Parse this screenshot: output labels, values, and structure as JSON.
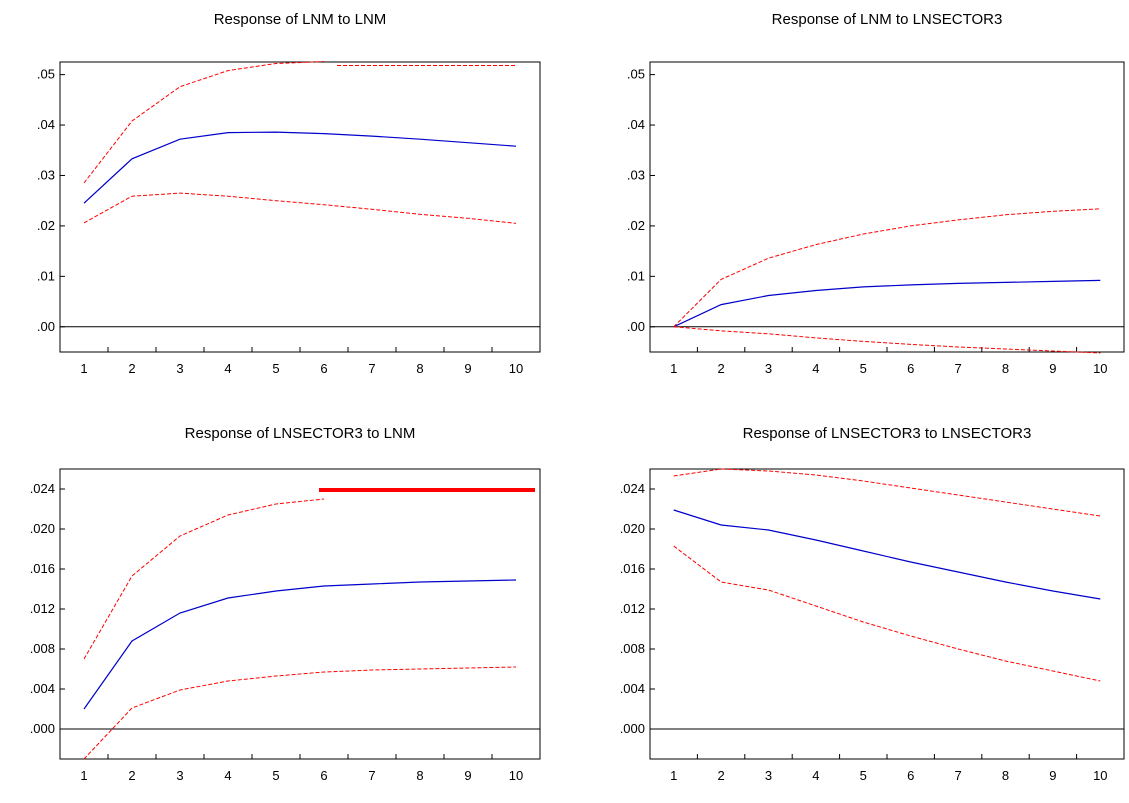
{
  "colors": {
    "response": "#0000cc",
    "bands": "#ff0000",
    "axis": "#000000"
  },
  "chart_data": [
    {
      "type": "line",
      "title": "Response of LNM to LNM",
      "x": [
        1,
        2,
        3,
        4,
        5,
        6,
        7,
        8,
        9,
        10
      ],
      "xticks": [
        "1",
        "2",
        "3",
        "4",
        "5",
        "6",
        "7",
        "8",
        "9",
        "10"
      ],
      "ylim": [
        -0.005,
        0.0525
      ],
      "yticks": [
        0.0,
        0.01,
        0.02,
        0.03,
        0.04,
        0.05
      ],
      "ytick_labels": [
        ".00",
        ".01",
        ".02",
        ".03",
        ".04",
        ".05"
      ],
      "zero_line": true,
      "series": [
        {
          "role": "response",
          "style": "solid",
          "values": [
            0.0245,
            0.0333,
            0.0372,
            0.0385,
            0.0386,
            0.0383,
            0.0378,
            0.0372,
            0.0365,
            0.0358
          ]
        },
        {
          "role": "upper-band",
          "style": "dashed",
          "values": [
            0.0285,
            0.0408,
            0.0476,
            0.0508,
            0.0522,
            0.0526,
            null,
            null,
            null,
            null
          ]
        },
        {
          "role": "upper-band-clipped",
          "style": "dashed",
          "values": [
            null,
            null,
            null,
            null,
            null,
            null,
            0.0518,
            0.0518,
            0.0518,
            0.0518
          ]
        },
        {
          "role": "lower-band",
          "style": "dashed",
          "values": [
            0.0206,
            0.0259,
            0.0265,
            0.0259,
            0.025,
            0.0242,
            0.0233,
            0.0223,
            0.0215,
            0.0205
          ]
        }
      ]
    },
    {
      "type": "line",
      "title": "Response of LNM to LNSECTOR3",
      "x": [
        1,
        2,
        3,
        4,
        5,
        6,
        7,
        8,
        9,
        10
      ],
      "xticks": [
        "1",
        "2",
        "3",
        "4",
        "5",
        "6",
        "7",
        "8",
        "9",
        "10"
      ],
      "ylim": [
        -0.005,
        0.0525
      ],
      "yticks": [
        0.0,
        0.01,
        0.02,
        0.03,
        0.04,
        0.05
      ],
      "ytick_labels": [
        ".00",
        ".01",
        ".02",
        ".03",
        ".04",
        ".05"
      ],
      "zero_line": true,
      "series": [
        {
          "role": "response",
          "style": "solid",
          "values": [
            0.0,
            0.0044,
            0.0062,
            0.0072,
            0.0079,
            0.0083,
            0.0086,
            0.0088,
            0.009,
            0.0092
          ]
        },
        {
          "role": "upper-band",
          "style": "dashed",
          "values": [
            0.0,
            0.0094,
            0.0136,
            0.0163,
            0.0184,
            0.02,
            0.0212,
            0.0222,
            0.0229,
            0.0234
          ]
        },
        {
          "role": "lower-band",
          "style": "dashed",
          "values": [
            0.0,
            -0.0008,
            -0.0014,
            -0.0022,
            -0.0029,
            -0.0035,
            -0.004,
            -0.0044,
            -0.0048,
            -0.0052
          ]
        }
      ]
    },
    {
      "type": "line",
      "title": "Response of LNSECTOR3 to LNM",
      "x": [
        1,
        2,
        3,
        4,
        5,
        6,
        7,
        8,
        9,
        10
      ],
      "xticks": [
        "1",
        "2",
        "3",
        "4",
        "5",
        "6",
        "7",
        "8",
        "9",
        "10"
      ],
      "ylim": [
        -0.003,
        0.026
      ],
      "yticks": [
        0.0,
        0.004,
        0.008,
        0.012,
        0.016,
        0.02,
        0.024
      ],
      "ytick_labels": [
        ".000",
        ".004",
        ".008",
        ".012",
        ".016",
        ".020",
        ".024"
      ],
      "zero_line": true,
      "series": [
        {
          "role": "response",
          "style": "solid",
          "values": [
            0.002,
            0.0088,
            0.0116,
            0.0131,
            0.0138,
            0.0143,
            0.0145,
            0.0147,
            0.0148,
            0.0149
          ]
        },
        {
          "role": "upper-band",
          "style": "dashed",
          "values": [
            0.007,
            0.0153,
            0.0193,
            0.0214,
            0.0225,
            0.023,
            null,
            null,
            null,
            null
          ]
        },
        {
          "role": "upper-band-clipped",
          "style": "thick",
          "values": [
            null,
            null,
            null,
            null,
            null,
            0.0239,
            0.0239,
            0.0239,
            0.0239,
            0.0239
          ]
        },
        {
          "role": "lower-band",
          "style": "dashed",
          "values": [
            -0.003,
            0.0021,
            0.0039,
            0.0048,
            0.0053,
            0.0057,
            0.0059,
            0.006,
            0.0061,
            0.0062
          ]
        }
      ]
    },
    {
      "type": "line",
      "title": "Response of LNSECTOR3 to LNSECTOR3",
      "x": [
        1,
        2,
        3,
        4,
        5,
        6,
        7,
        8,
        9,
        10
      ],
      "xticks": [
        "1",
        "2",
        "3",
        "4",
        "5",
        "6",
        "7",
        "8",
        "9",
        "10"
      ],
      "ylim": [
        -0.003,
        0.026
      ],
      "yticks": [
        0.0,
        0.004,
        0.008,
        0.012,
        0.016,
        0.02,
        0.024
      ],
      "ytick_labels": [
        ".000",
        ".004",
        ".008",
        ".012",
        ".016",
        ".020",
        ".024"
      ],
      "zero_line": true,
      "series": [
        {
          "role": "response",
          "style": "solid",
          "values": [
            0.0219,
            0.0204,
            0.0199,
            0.0189,
            0.0178,
            0.0167,
            0.0157,
            0.0147,
            0.0138,
            0.013
          ]
        },
        {
          "role": "upper-band",
          "style": "dashed",
          "values": [
            0.0253,
            0.026,
            0.0258,
            0.0254,
            0.0248,
            0.0241,
            0.0234,
            0.0227,
            0.022,
            0.0213
          ]
        },
        {
          "role": "lower-band",
          "style": "dashed",
          "values": [
            0.0183,
            0.0147,
            0.0139,
            0.0123,
            0.0107,
            0.0093,
            0.008,
            0.0068,
            0.0058,
            0.0048
          ]
        }
      ]
    }
  ]
}
